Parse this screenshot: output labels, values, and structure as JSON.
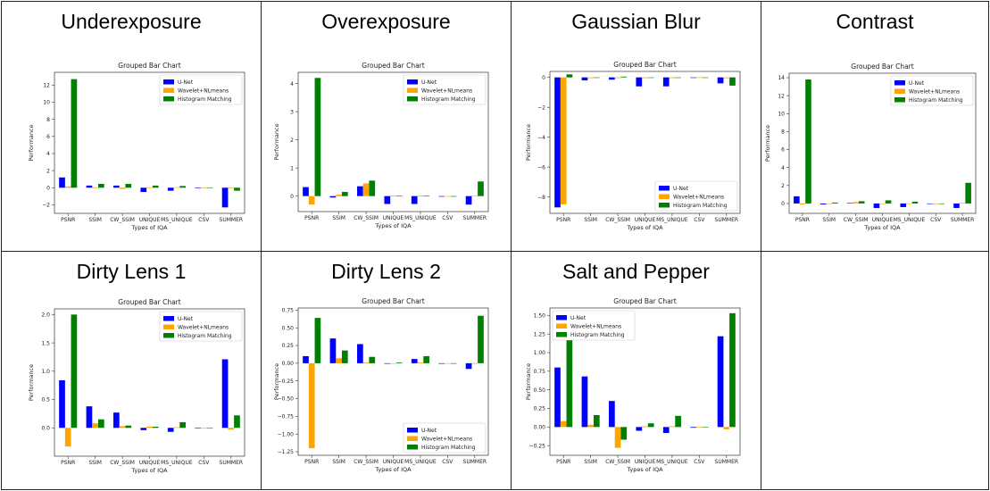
{
  "colors": {
    "unet": "#0000ff",
    "wavelet": "#ffa500",
    "histogram": "#008000"
  },
  "panels": [
    {
      "title": "Underexposure",
      "chart_data": {
        "type": "bar",
        "title": "Grouped Bar Chart",
        "xlabel": "Types of IQA",
        "ylabel": "Performance",
        "categories": [
          "PSNR",
          "SSIM",
          "CW_SSIM",
          "UNIQUE",
          "MS_UNIQUE",
          "CSV",
          "SUMMER"
        ],
        "series": [
          {
            "name": "U-Net",
            "values": [
              1.2,
              0.25,
              0.25,
              -0.5,
              -0.35,
              -0.05,
              -2.3
            ]
          },
          {
            "name": "Wavelet+NLmeans",
            "values": [
              0.15,
              -0.05,
              -0.15,
              0.02,
              0.05,
              0.0,
              -0.05
            ]
          },
          {
            "name": "Histogram Matching",
            "values": [
              12.7,
              0.45,
              0.45,
              0.25,
              0.2,
              0.0,
              -0.35
            ]
          }
        ],
        "ylim": [
          -3.0,
          13.5
        ],
        "yticks": [
          -2,
          0,
          2,
          4,
          6,
          8,
          10,
          12
        ],
        "legend": "top-right"
      }
    },
    {
      "title": "Overexposure",
      "chart_data": {
        "type": "bar",
        "title": "Grouped Bar Chart",
        "xlabel": "Types of IQA",
        "ylabel": "Performance",
        "categories": [
          "PSNR",
          "SSIM",
          "CW_SSIM",
          "UNIQUE",
          "MS_UNIQUE",
          "CSV",
          "SUMMER"
        ],
        "series": [
          {
            "name": "U-Net",
            "values": [
              0.32,
              -0.05,
              0.35,
              -0.28,
              -0.28,
              -0.02,
              -0.3
            ]
          },
          {
            "name": "Wavelet+NLmeans",
            "values": [
              -0.3,
              0.05,
              0.45,
              0.02,
              0.02,
              0.0,
              0.02
            ]
          },
          {
            "name": "Histogram Matching",
            "values": [
              4.2,
              0.15,
              0.55,
              0.02,
              0.02,
              0.0,
              0.52
            ]
          }
        ],
        "ylim": [
          -0.55,
          4.4
        ],
        "yticks": [
          0,
          1,
          2,
          3,
          4
        ],
        "legend": "top-right"
      }
    },
    {
      "title": "Gaussian Blur",
      "chart_data": {
        "type": "bar",
        "title": "Grouped Bar Chart",
        "xlabel": "Types of IQA",
        "ylabel": "Performance",
        "categories": [
          "PSNR",
          "SSIM",
          "CW_SSIM",
          "UNIQUE",
          "MS_UNIQUE",
          "CSV",
          "SUMMER"
        ],
        "series": [
          {
            "name": "U-Net",
            "values": [
              -8.7,
              -0.2,
              -0.15,
              -0.6,
              -0.6,
              -0.02,
              -0.4
            ]
          },
          {
            "name": "Wavelet+NLmeans",
            "values": [
              -8.5,
              -0.05,
              -0.05,
              -0.05,
              -0.05,
              0.0,
              -0.05
            ]
          },
          {
            "name": "Histogram Matching",
            "values": [
              0.2,
              0.0,
              0.05,
              0.0,
              0.0,
              0.0,
              -0.55
            ]
          }
        ],
        "ylim": [
          -9.1,
          0.4
        ],
        "yticks": [
          -8,
          -6,
          -4,
          -2,
          0
        ],
        "legend": "bottom-right"
      }
    },
    {
      "title": "Contrast",
      "chart_data": {
        "type": "bar",
        "title": "Grouped Bar Chart",
        "xlabel": "Types of IQA",
        "ylabel": "Performance",
        "categories": [
          "PSNR",
          "SSIM",
          "CW_SSIM",
          "UNIQUE",
          "MS_UNIQUE",
          "CSV",
          "SUMMER"
        ],
        "series": [
          {
            "name": "U-Net",
            "values": [
              0.8,
              -0.1,
              0.05,
              -0.5,
              -0.4,
              -0.05,
              -0.5
            ]
          },
          {
            "name": "Wavelet+NLmeans",
            "values": [
              -0.1,
              0.0,
              0.15,
              0.0,
              0.0,
              0.0,
              0.05
            ]
          },
          {
            "name": "Histogram Matching",
            "values": [
              13.8,
              0.1,
              0.25,
              0.35,
              0.2,
              0.0,
              2.3
            ]
          }
        ],
        "ylim": [
          -1.1,
          14.5
        ],
        "yticks": [
          0,
          2,
          4,
          6,
          8,
          10,
          12,
          14
        ],
        "legend": "top-right"
      }
    },
    {
      "title": "Dirty Lens 1",
      "chart_data": {
        "type": "bar",
        "title": "Grouped Bar Chart",
        "xlabel": "Types of IQA",
        "ylabel": "Performance",
        "categories": [
          "PSNR",
          "SSIM",
          "CW_SSIM",
          "UNIQUE",
          "MS_UNIQUE",
          "CSV",
          "SUMMER"
        ],
        "series": [
          {
            "name": "U-Net",
            "values": [
              0.84,
              0.38,
              0.27,
              -0.04,
              -0.07,
              0.0,
              1.21
            ]
          },
          {
            "name": "Wavelet+NLmeans",
            "values": [
              -0.33,
              0.08,
              0.03,
              0.02,
              0.01,
              -0.01,
              -0.03
            ]
          },
          {
            "name": "Histogram Matching",
            "values": [
              2.0,
              0.15,
              0.04,
              0.02,
              0.1,
              0.0,
              0.22
            ]
          }
        ],
        "ylim": [
          -0.5,
          2.1
        ],
        "yticks": [
          0.0,
          0.5,
          1.0,
          1.5,
          2.0
        ],
        "legend": "top-right"
      }
    },
    {
      "title": "Dirty Lens 2",
      "chart_data": {
        "type": "bar",
        "title": "Grouped Bar Chart",
        "xlabel": "Types of IQA",
        "ylabel": "Performance",
        "categories": [
          "PSNR",
          "SSIM",
          "CW_SSIM",
          "UNIQUE",
          "MS_UNIQUE",
          "CSV",
          "SUMMER"
        ],
        "series": [
          {
            "name": "U-Net",
            "values": [
              0.1,
              0.35,
              0.27,
              0.0,
              0.06,
              0.0,
              -0.08
            ]
          },
          {
            "name": "Wavelet+NLmeans",
            "values": [
              -1.2,
              0.07,
              0.01,
              0.0,
              0.01,
              0.0,
              0.0
            ]
          },
          {
            "name": "Histogram Matching",
            "values": [
              0.64,
              0.18,
              0.09,
              0.01,
              0.1,
              0.0,
              0.67
            ]
          }
        ],
        "ylim": [
          -1.3,
          0.78
        ],
        "yticks": [
          -1.25,
          -1.0,
          -0.75,
          -0.5,
          -0.25,
          0.0,
          0.25,
          0.5,
          0.75
        ],
        "legend": "bottom-right"
      }
    },
    {
      "title": "Salt and Pepper",
      "chart_data": {
        "type": "bar",
        "title": "Grouped Bar Chart",
        "xlabel": "Types of IQA",
        "ylabel": "Performance",
        "categories": [
          "PSNR",
          "SSIM",
          "CW_SSIM",
          "UNIQUE",
          "MS_UNIQUE",
          "CSV",
          "SUMMER"
        ],
        "series": [
          {
            "name": "U-Net",
            "values": [
              0.8,
              0.68,
              0.35,
              -0.05,
              -0.08,
              -0.01,
              1.22
            ]
          },
          {
            "name": "Wavelet+NLmeans",
            "values": [
              0.08,
              0.03,
              -0.28,
              0.01,
              0.01,
              0.0,
              -0.03
            ]
          },
          {
            "name": "Histogram Matching",
            "values": [
              1.19,
              0.16,
              -0.17,
              0.05,
              0.15,
              0.0,
              1.53
            ]
          }
        ],
        "ylim": [
          -0.38,
          1.6
        ],
        "yticks": [
          -0.25,
          0.0,
          0.25,
          0.5,
          0.75,
          1.0,
          1.25,
          1.5
        ],
        "legend": "top-left"
      }
    }
  ]
}
